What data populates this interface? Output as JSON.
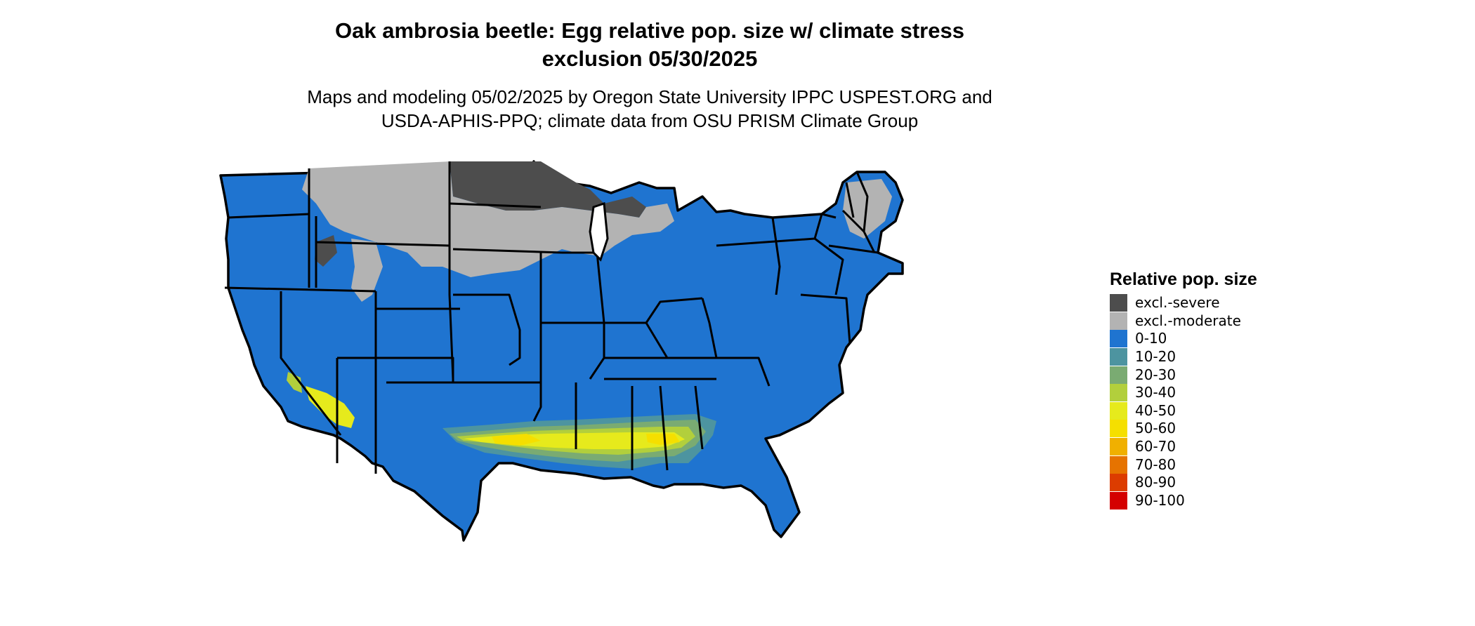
{
  "title": {
    "line1": "Oak ambrosia beetle: Egg relative pop. size w/ climate stress",
    "line2": "exclusion 05/30/2025"
  },
  "subtitle": {
    "line1": "Maps and modeling 05/02/2025 by Oregon State University IPPC USPEST.ORG and",
    "line2": "USDA-APHIS-PPQ; climate data from OSU PRISM Climate Group"
  },
  "legend": {
    "title": "Relative pop. size",
    "items": [
      {
        "label": "excl.-severe",
        "color": "#4d4d4d"
      },
      {
        "label": "excl.-moderate",
        "color": "#b3b3b3"
      },
      {
        "label": "0-10",
        "color": "#1f74d0"
      },
      {
        "label": "10-20",
        "color": "#4d94a0"
      },
      {
        "label": "20-30",
        "color": "#7aab72"
      },
      {
        "label": "30-40",
        "color": "#b2cf3c"
      },
      {
        "label": "40-50",
        "color": "#e6ea1c"
      },
      {
        "label": "50-60",
        "color": "#f5df00"
      },
      {
        "label": "60-70",
        "color": "#f0b000"
      },
      {
        "label": "70-80",
        "color": "#e67300"
      },
      {
        "label": "80-90",
        "color": "#dc3c00"
      },
      {
        "label": "90-100",
        "color": "#d40000"
      }
    ]
  }
}
